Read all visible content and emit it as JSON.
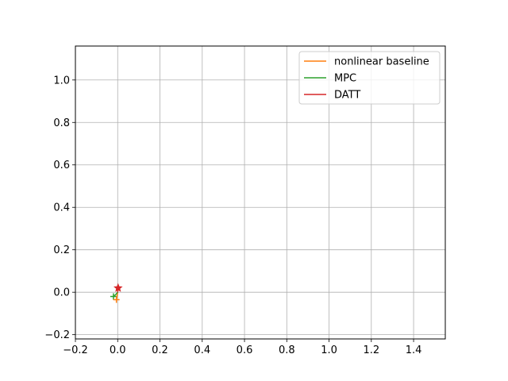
{
  "chart_data": {
    "type": "line",
    "title": "",
    "xlabel": "",
    "ylabel": "",
    "xlim": [
      -0.2,
      1.55
    ],
    "ylim": [
      -0.22,
      1.16
    ],
    "xticks": [
      -0.2,
      0.0,
      0.2,
      0.4,
      0.6,
      0.8,
      1.0,
      1.2,
      1.4
    ],
    "xtick_labels": [
      "−0.2",
      "0.0",
      "0.2",
      "0.4",
      "0.6",
      "0.8",
      "1.0",
      "1.2",
      "1.4"
    ],
    "yticks": [
      -0.2,
      0.0,
      0.2,
      0.4,
      0.6,
      0.8,
      1.0
    ],
    "ytick_labels": [
      "−0.2",
      "0.0",
      "0.2",
      "0.4",
      "0.6",
      "0.8",
      "1.0"
    ],
    "grid": true,
    "legend_position": "top-right",
    "series": [
      {
        "name": "nonlinear baseline",
        "color": "#ff7f0e",
        "x": [
          0.0,
          -0.003,
          -0.006
        ],
        "y": [
          0.0,
          -0.02,
          -0.035
        ]
      },
      {
        "name": "MPC",
        "color": "#2ca02c",
        "x": [
          0.0,
          -0.01,
          -0.02
        ],
        "y": [
          0.0,
          -0.012,
          -0.02
        ]
      },
      {
        "name": "DATT",
        "color": "#d62728",
        "x": [
          0.0,
          0.001,
          0.002
        ],
        "y": [
          0.0,
          0.01,
          0.02
        ]
      }
    ],
    "markers": [
      {
        "label_ref": "DATT",
        "shape": "star",
        "x": 0.002,
        "y": 0.02,
        "color": "#d62728"
      },
      {
        "label_ref": "MPC",
        "shape": "plus",
        "x": -0.02,
        "y": -0.02,
        "color": "#2ca02c"
      },
      {
        "label_ref": "nonlinear baseline",
        "shape": "plus",
        "x": -0.006,
        "y": -0.035,
        "color": "#ff7f0e"
      }
    ]
  }
}
